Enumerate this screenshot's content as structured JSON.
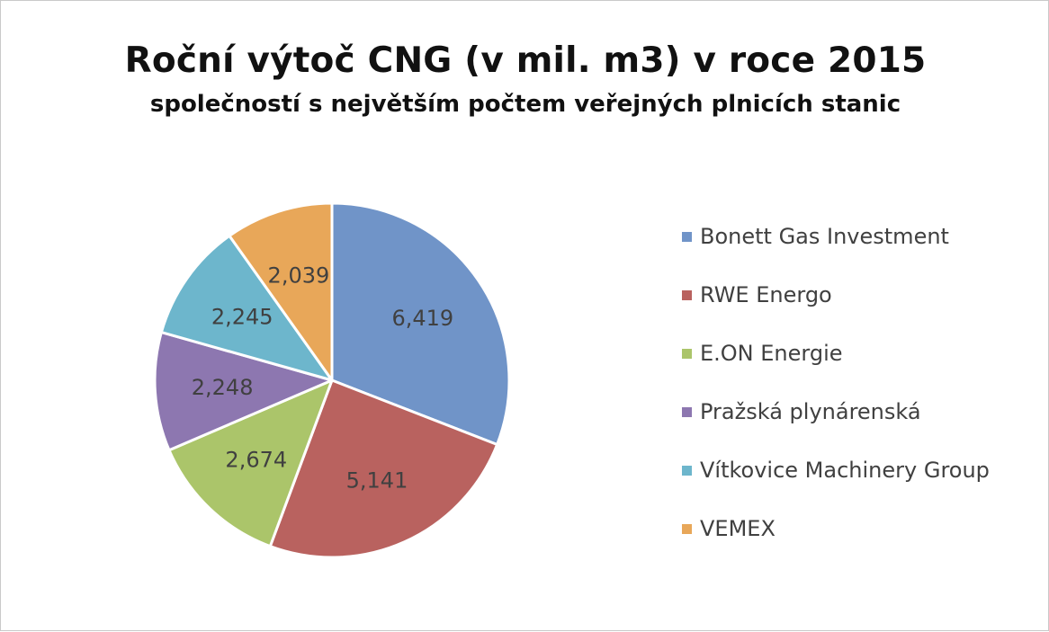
{
  "chart_data": {
    "type": "pie",
    "title": "Roční výtoč CNG (v mil. m3) v roce 2015",
    "subtitle": "společností s největším počtem veřejných plnicích stanic",
    "categories": [
      "Bonett Gas Investment",
      "RWE Energo",
      "E.ON Energie",
      "Pražská plynárenská",
      "Vítkovice Machinery Group",
      "VEMEX"
    ],
    "values": [
      6.419,
      5.141,
      2.674,
      2.248,
      2.245,
      2.039
    ],
    "data_labels": [
      "6,419",
      "5,141",
      "2,674",
      "2,248",
      "2,245",
      "2,039"
    ],
    "colors": [
      "#7094c8",
      "#b9625f",
      "#abc56a",
      "#8d77b0",
      "#6db6cc",
      "#e8a759"
    ],
    "legend_position": "right"
  }
}
